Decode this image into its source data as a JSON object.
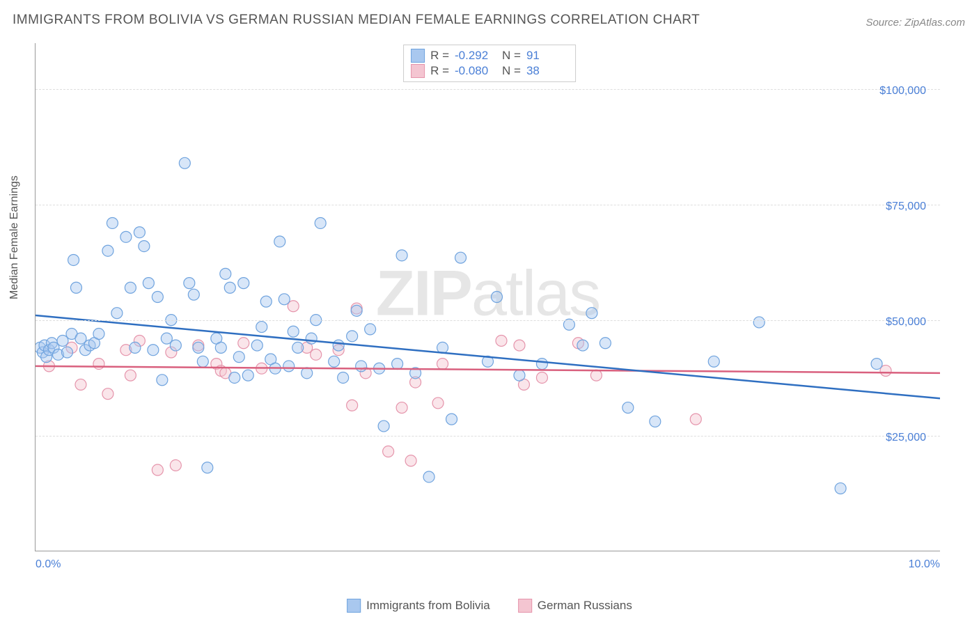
{
  "title": "IMMIGRANTS FROM BOLIVIA VS GERMAN RUSSIAN MEDIAN FEMALE EARNINGS CORRELATION CHART",
  "source_label": "Source: ZipAtlas.com",
  "ylabel": "Median Female Earnings",
  "watermark_a": "ZIP",
  "watermark_b": "atlas",
  "chart": {
    "type": "scatter",
    "xlim": [
      0,
      10
    ],
    "ylim": [
      0,
      110000
    ],
    "x_tick_labels": {
      "0": "0.0%",
      "10": "10.0%"
    },
    "y_ticks": [
      25000,
      50000,
      75000,
      100000
    ],
    "y_tick_labels": {
      "25000": "$25,000",
      "50000": "$50,000",
      "75000": "$75,000",
      "100000": "$100,000"
    },
    "grid_color": "#dddddd",
    "axis_color": "#999999",
    "marker_radius": 8,
    "series": [
      {
        "name": "Immigrants from Bolivia",
        "fill": "#a9c8ef",
        "stroke": "#6fa3de",
        "line_color": "#2f6fc1",
        "R": "-0.292",
        "N": "91",
        "regression": {
          "x1": 0,
          "y1": 51000,
          "x2": 10,
          "y2": 33000
        },
        "points": [
          [
            0.05,
            44000
          ],
          [
            0.08,
            43000
          ],
          [
            0.1,
            44500
          ],
          [
            0.12,
            42000
          ],
          [
            0.15,
            43500
          ],
          [
            0.18,
            45000
          ],
          [
            0.2,
            44000
          ],
          [
            0.25,
            42500
          ],
          [
            0.3,
            45500
          ],
          [
            0.35,
            43000
          ],
          [
            0.4,
            47000
          ],
          [
            0.42,
            63000
          ],
          [
            0.45,
            57000
          ],
          [
            0.5,
            46000
          ],
          [
            0.55,
            43500
          ],
          [
            0.6,
            44500
          ],
          [
            0.65,
            45000
          ],
          [
            0.7,
            47000
          ],
          [
            0.8,
            65000
          ],
          [
            0.85,
            71000
          ],
          [
            0.9,
            51500
          ],
          [
            1.0,
            68000
          ],
          [
            1.05,
            57000
          ],
          [
            1.1,
            44000
          ],
          [
            1.15,
            69000
          ],
          [
            1.2,
            66000
          ],
          [
            1.25,
            58000
          ],
          [
            1.3,
            43500
          ],
          [
            1.35,
            55000
          ],
          [
            1.4,
            37000
          ],
          [
            1.45,
            46000
          ],
          [
            1.5,
            50000
          ],
          [
            1.55,
            44500
          ],
          [
            1.65,
            84000
          ],
          [
            1.7,
            58000
          ],
          [
            1.75,
            55500
          ],
          [
            1.8,
            44000
          ],
          [
            1.85,
            41000
          ],
          [
            1.9,
            18000
          ],
          [
            2.0,
            46000
          ],
          [
            2.05,
            44000
          ],
          [
            2.1,
            60000
          ],
          [
            2.15,
            57000
          ],
          [
            2.2,
            37500
          ],
          [
            2.25,
            42000
          ],
          [
            2.3,
            58000
          ],
          [
            2.35,
            38000
          ],
          [
            2.45,
            44500
          ],
          [
            2.5,
            48500
          ],
          [
            2.55,
            54000
          ],
          [
            2.6,
            41500
          ],
          [
            2.65,
            39500
          ],
          [
            2.7,
            67000
          ],
          [
            2.75,
            54500
          ],
          [
            2.8,
            40000
          ],
          [
            2.85,
            47500
          ],
          [
            2.9,
            44000
          ],
          [
            3.0,
            38500
          ],
          [
            3.05,
            46000
          ],
          [
            3.1,
            50000
          ],
          [
            3.15,
            71000
          ],
          [
            3.3,
            41000
          ],
          [
            3.35,
            44500
          ],
          [
            3.4,
            37500
          ],
          [
            3.5,
            46500
          ],
          [
            3.55,
            52000
          ],
          [
            3.6,
            40000
          ],
          [
            3.7,
            48000
          ],
          [
            3.8,
            39500
          ],
          [
            3.85,
            27000
          ],
          [
            4.0,
            40500
          ],
          [
            4.05,
            64000
          ],
          [
            4.2,
            38500
          ],
          [
            4.35,
            16000
          ],
          [
            4.5,
            44000
          ],
          [
            4.6,
            28500
          ],
          [
            4.7,
            63500
          ],
          [
            5.0,
            41000
          ],
          [
            5.1,
            55000
          ],
          [
            5.35,
            38000
          ],
          [
            5.6,
            40500
          ],
          [
            5.9,
            49000
          ],
          [
            6.05,
            44500
          ],
          [
            6.15,
            51500
          ],
          [
            6.3,
            45000
          ],
          [
            6.55,
            31000
          ],
          [
            6.85,
            28000
          ],
          [
            7.5,
            41000
          ],
          [
            8.0,
            49500
          ],
          [
            8.9,
            13500
          ],
          [
            9.3,
            40500
          ]
        ]
      },
      {
        "name": "German Russians",
        "fill": "#f4c5d1",
        "stroke": "#e594ab",
        "line_color": "#d9607e",
        "R": "-0.080",
        "N": "38",
        "regression": {
          "x1": 0,
          "y1": 40000,
          "x2": 10,
          "y2": 38500
        },
        "points": [
          [
            0.15,
            40000
          ],
          [
            0.4,
            44000
          ],
          [
            0.5,
            36000
          ],
          [
            0.7,
            40500
          ],
          [
            0.8,
            34000
          ],
          [
            1.0,
            43500
          ],
          [
            1.05,
            38000
          ],
          [
            1.15,
            45500
          ],
          [
            1.35,
            17500
          ],
          [
            1.5,
            43000
          ],
          [
            1.55,
            18500
          ],
          [
            1.8,
            44500
          ],
          [
            2.0,
            40500
          ],
          [
            2.05,
            39000
          ],
          [
            2.1,
            38500
          ],
          [
            2.3,
            45000
          ],
          [
            2.5,
            39500
          ],
          [
            2.85,
            53000
          ],
          [
            3.0,
            44000
          ],
          [
            3.1,
            42500
          ],
          [
            3.35,
            43500
          ],
          [
            3.5,
            31500
          ],
          [
            3.55,
            52500
          ],
          [
            3.65,
            38500
          ],
          [
            3.9,
            21500
          ],
          [
            4.05,
            31000
          ],
          [
            4.15,
            19500
          ],
          [
            4.2,
            36500
          ],
          [
            4.45,
            32000
          ],
          [
            4.5,
            40500
          ],
          [
            5.15,
            45500
          ],
          [
            5.35,
            44500
          ],
          [
            5.4,
            36000
          ],
          [
            5.6,
            37500
          ],
          [
            6.0,
            45000
          ],
          [
            6.2,
            38000
          ],
          [
            7.3,
            28500
          ],
          [
            9.4,
            39000
          ]
        ]
      }
    ]
  },
  "legend": {
    "r_label": "R =",
    "n_label": "N ="
  }
}
